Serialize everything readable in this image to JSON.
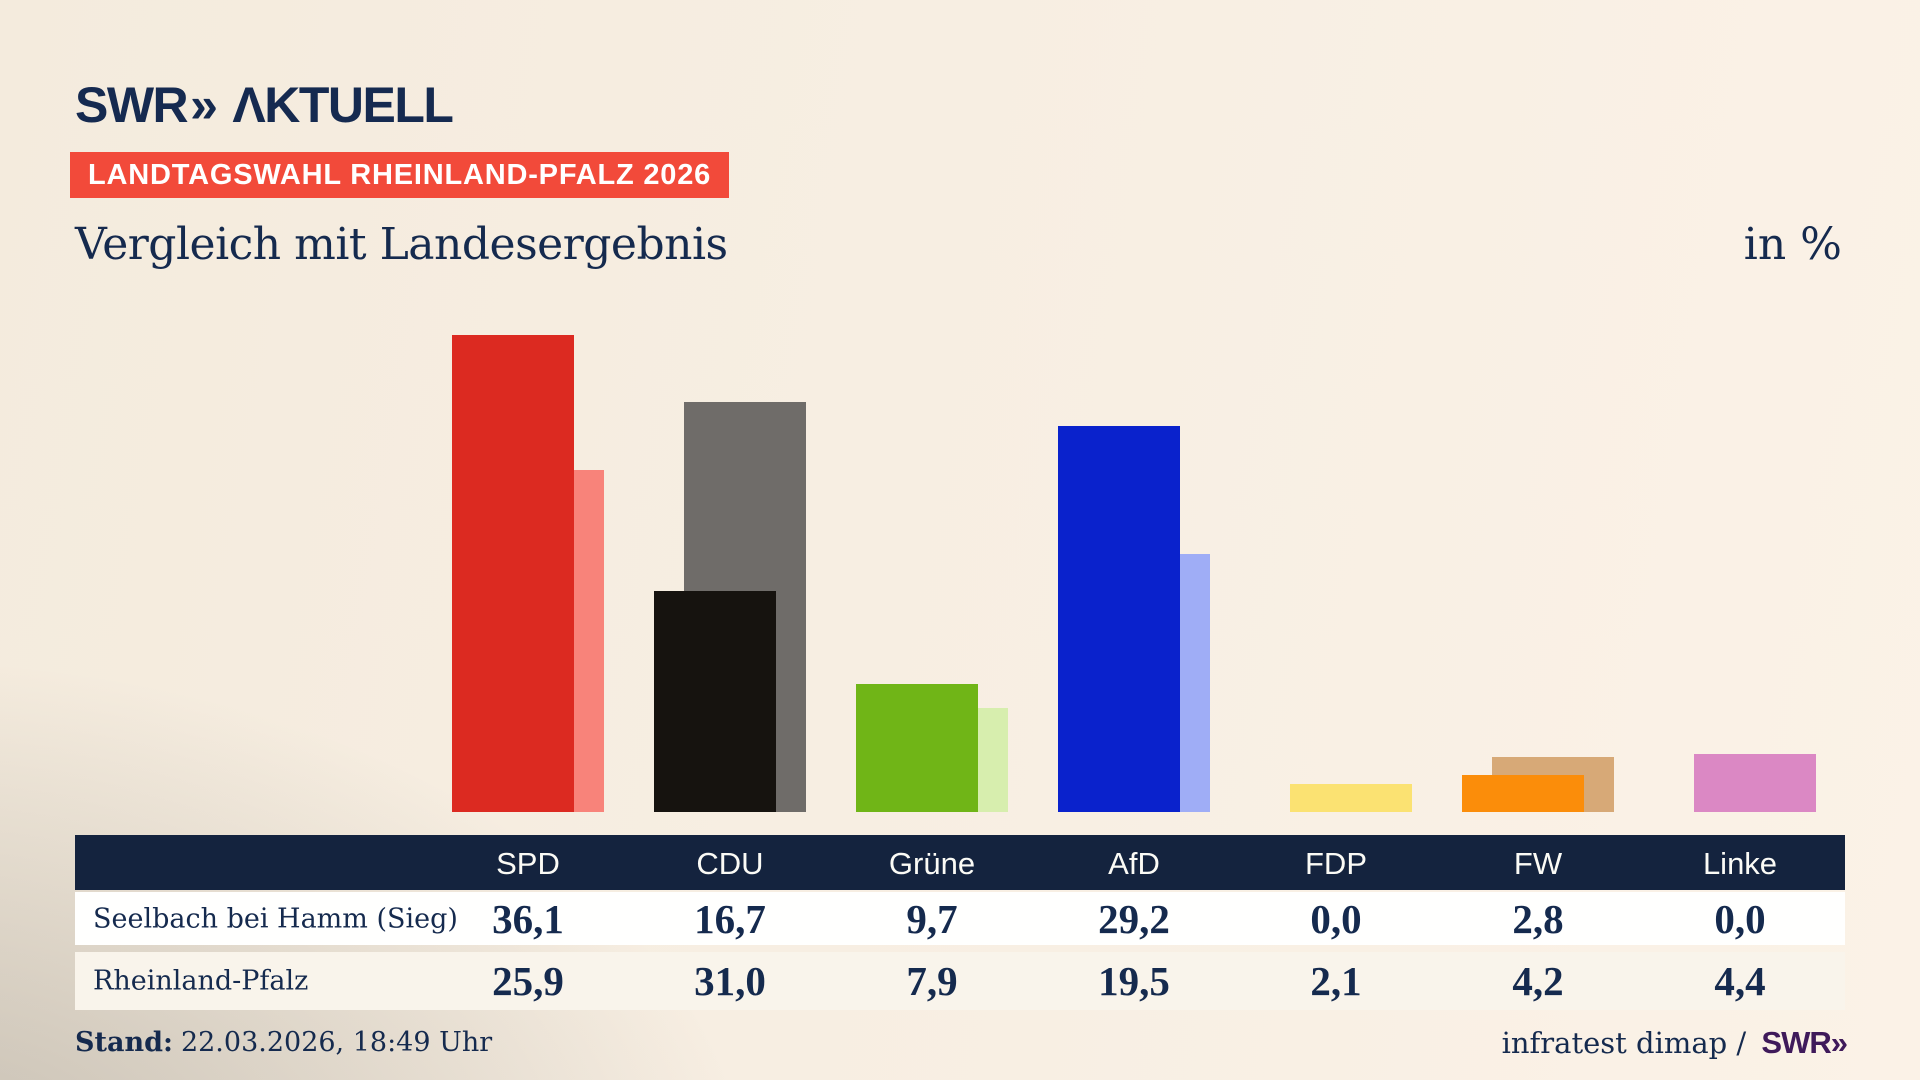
{
  "header": {
    "logo_swr": "SWR",
    "logo_chevrons": "»",
    "logo_aktuell": "ΛKTUELL",
    "banner": "LANDTAGSWAHL RHEINLAND-PFALZ 2026",
    "title": "Vergleich mit Landesergebnis",
    "unit": "in %"
  },
  "chart_data": {
    "type": "bar",
    "categories": [
      "SPD",
      "CDU",
      "Grüne",
      "AfD",
      "FDP",
      "FW",
      "Linke"
    ],
    "series": [
      {
        "name": "Seelbach bei Hamm (Sieg)",
        "values": [
          36.1,
          16.7,
          9.7,
          29.2,
          0.0,
          2.8,
          0.0
        ],
        "colors": [
          "#dc2a21",
          "#16130f",
          "#70b517",
          "#0a22cc",
          null,
          "#fb8d0a",
          null
        ]
      },
      {
        "name": "Rheinland-Pfalz",
        "values": [
          25.9,
          31.0,
          7.9,
          19.5,
          2.1,
          4.2,
          4.4
        ],
        "colors": [
          "#f8837a",
          "#6f6c69",
          "#d7eeae",
          "#9fadf6",
          "#fbe272",
          "#d7a977",
          "#db88c4"
        ]
      }
    ],
    "unit": "%",
    "ylim": [
      0,
      38
    ],
    "grid": false,
    "axis_labels_visible": false,
    "legend_position": "table-below"
  },
  "table": {
    "columns": [
      "SPD",
      "CDU",
      "Grüne",
      "AfD",
      "FDP",
      "FW",
      "Linke"
    ],
    "rows": [
      {
        "label": "Seelbach bei Hamm (Sieg)",
        "values": [
          "36,1",
          "16,7",
          "9,7",
          "29,2",
          "0,0",
          "2,8",
          "0,0"
        ]
      },
      {
        "label": "Rheinland-Pfalz",
        "values": [
          "25,9",
          "31,0",
          "7,9",
          "19,5",
          "2,1",
          "4,2",
          "4,4"
        ]
      }
    ],
    "header_bg": "#14233e"
  },
  "footer": {
    "stand_label": "Stand:",
    "stand_value": "22.03.2026, 18:49 Uhr",
    "source_text": "infratest dimap /",
    "source_logo_swr": "SWR",
    "source_logo_chevrons": "»"
  },
  "colors": {
    "navy": "#152a4e",
    "banner_red": "#f24a3a",
    "swr_purple": "#3f1a5a",
    "background_cream": "#f7eee2"
  }
}
